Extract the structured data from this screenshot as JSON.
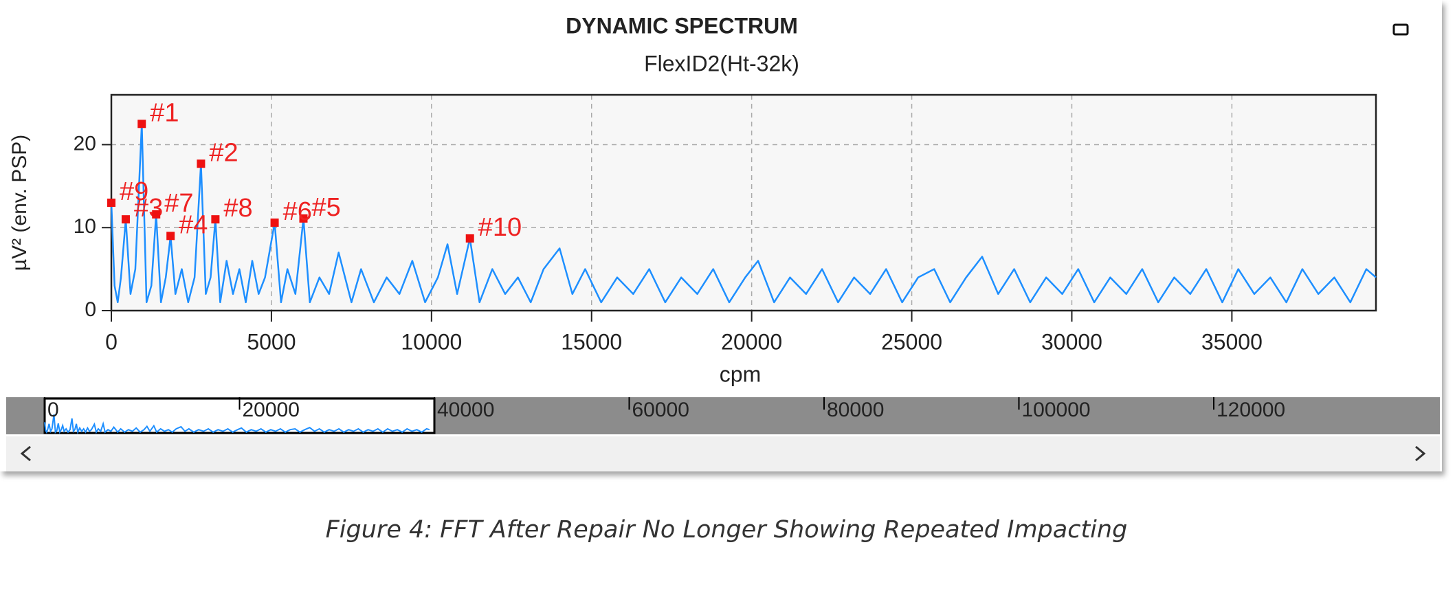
{
  "chart_data": {
    "type": "line",
    "title": "DYNAMIC SPECTRUM",
    "subtitle": "FlexID2(Ht-32k)",
    "y_label": "µV² (env. PSP)",
    "x_label": "cpm",
    "color": "#1e8fff",
    "grid": true,
    "xlim": [
      0,
      39500
    ],
    "ylim": [
      0,
      26
    ],
    "xticks": [
      0,
      5000,
      10000,
      15000,
      20000,
      25000,
      30000,
      35000
    ],
    "yticks": [
      0,
      10,
      20
    ],
    "x": [
      0,
      100,
      200,
      300,
      450,
      600,
      750,
      950,
      1100,
      1250,
      1400,
      1550,
      1700,
      1850,
      2000,
      2200,
      2400,
      2600,
      2800,
      2950,
      3100,
      3250,
      3400,
      3600,
      3800,
      4000,
      4200,
      4400,
      4600,
      4800,
      5100,
      5300,
      5500,
      5750,
      6000,
      6200,
      6500,
      6800,
      7100,
      7500,
      7800,
      8200,
      8600,
      9000,
      9400,
      9800,
      10200,
      10500,
      10800,
      11200,
      11500,
      11900,
      12300,
      12700,
      13100,
      13500,
      14000,
      14400,
      14800,
      15300,
      15800,
      16300,
      16800,
      17300,
      17800,
      18300,
      18800,
      19300,
      19800,
      20200,
      20700,
      21200,
      21700,
      22200,
      22700,
      23200,
      23700,
      24200,
      24700,
      25200,
      25700,
      26200,
      26700,
      27200,
      27700,
      28200,
      28700,
      29200,
      29700,
      30200,
      30700,
      31200,
      31700,
      32200,
      32700,
      33200,
      33700,
      34200,
      34700,
      35200,
      35700,
      36200,
      36700,
      37200,
      37700,
      38200,
      38700,
      39200,
      39500
    ],
    "values": [
      13,
      3,
      1,
      4,
      11,
      2,
      5,
      22.5,
      1,
      3,
      11.6,
      1,
      4,
      9,
      2,
      5,
      1,
      4,
      17.7,
      2,
      4,
      11,
      1,
      6,
      2,
      5,
      1,
      6,
      2,
      4,
      10.6,
      1,
      5,
      2,
      11.1,
      1,
      4,
      2,
      7,
      1,
      5,
      1,
      4,
      2,
      6,
      1,
      4,
      8,
      2,
      8.7,
      1,
      5,
      2,
      4,
      1,
      5,
      7.5,
      2,
      5,
      1,
      4,
      2,
      5,
      1,
      4,
      2,
      5,
      1,
      4,
      6,
      1,
      4,
      2,
      5,
      1,
      4,
      2,
      5,
      1,
      4,
      5,
      1,
      4,
      6.5,
      2,
      5,
      1,
      4,
      2,
      5,
      1,
      4,
      2,
      5,
      1,
      4,
      2,
      5,
      1,
      5,
      2,
      4,
      1,
      5,
      2,
      4,
      1,
      5,
      4
    ],
    "markers": [
      {
        "x": 950,
        "y": 22.5,
        "label": "#1"
      },
      {
        "x": 2800,
        "y": 17.7,
        "label": "#2"
      },
      {
        "x": 450,
        "y": 11,
        "label": "#3"
      },
      {
        "x": 1850,
        "y": 9,
        "label": "#4"
      },
      {
        "x": 6000,
        "y": 11.1,
        "label": "#5"
      },
      {
        "x": 5100,
        "y": 10.6,
        "label": "#6"
      },
      {
        "x": 1400,
        "y": 11.6,
        "label": "#7"
      },
      {
        "x": 3250,
        "y": 11,
        "label": "#8"
      },
      {
        "x": 0,
        "y": 13,
        "label": "#9"
      },
      {
        "x": 11200,
        "y": 8.7,
        "label": "#10"
      }
    ],
    "overview": {
      "xlim": [
        0,
        140000
      ],
      "xticks": [
        0,
        20000,
        40000,
        60000,
        80000,
        100000,
        120000
      ],
      "window": [
        0,
        40000
      ]
    }
  },
  "caption": "Figure 4: FFT After Repair No Longer Showing Repeated Impacting"
}
